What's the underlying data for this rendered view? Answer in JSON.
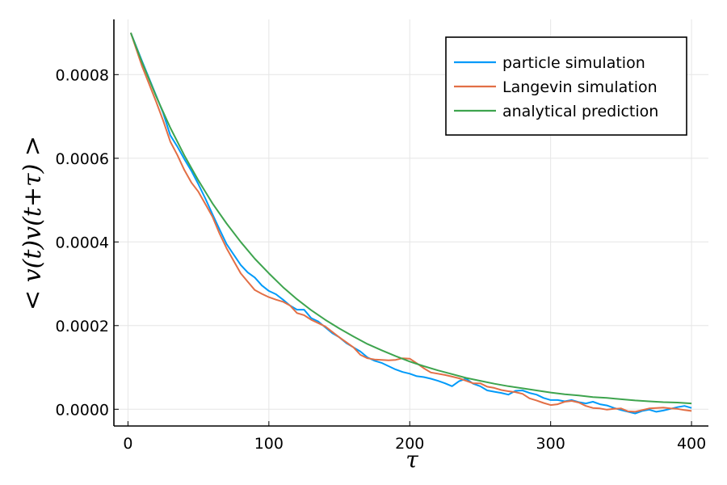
{
  "chart_data": {
    "type": "line",
    "title": "",
    "xlabel": "τ",
    "ylabel": "< v(t)v(t+τ) >",
    "xlim": [
      -10,
      412
    ],
    "ylim": [
      -4e-05,
      0.000932
    ],
    "xticks": [
      0,
      100,
      200,
      300,
      400
    ],
    "xtick_labels": [
      "0",
      "100",
      "200",
      "300",
      "400"
    ],
    "yticks": [
      0,
      0.0002,
      0.0004,
      0.0006,
      0.0008
    ],
    "ytick_labels": [
      "0.0000",
      "0.0002",
      "0.0004",
      "0.0006",
      "0.0008"
    ],
    "grid": true,
    "legend_position": "top-right",
    "series": [
      {
        "name": "particle simulation",
        "color": "#009af9",
        "x": [
          2,
          10,
          20,
          25,
          30,
          35,
          40,
          45,
          50,
          55,
          60,
          65,
          70,
          75,
          80,
          85,
          90,
          95,
          100,
          105,
          110,
          115,
          120,
          125,
          130,
          135,
          140,
          145,
          150,
          155,
          160,
          165,
          170,
          175,
          180,
          185,
          190,
          195,
          200,
          205,
          210,
          215,
          220,
          225,
          230,
          235,
          240,
          245,
          250,
          255,
          260,
          265,
          270,
          275,
          280,
          285,
          290,
          295,
          300,
          305,
          310,
          315,
          320,
          325,
          330,
          335,
          340,
          345,
          350,
          355,
          360,
          365,
          370,
          375,
          380,
          385,
          390,
          395,
          400
        ],
        "values": [
          0.0009,
          0.000832,
          0.00075,
          0.000708,
          0.000655,
          0.000628,
          0.000598,
          0.00057,
          0.000538,
          0.000503,
          0.000466,
          0.00043,
          0.000395,
          0.00037,
          0.000345,
          0.000327,
          0.000315,
          0.000296,
          0.000283,
          0.000275,
          0.000262,
          0.000248,
          0.000238,
          0.000238,
          0.000218,
          0.00021,
          0.000196,
          0.000182,
          0.000172,
          0.000158,
          0.000148,
          0.000138,
          0.000124,
          0.000116,
          0.000111,
          0.000103,
          9.5e-05,
          8.9e-05,
          8.5e-05,
          7.9e-05,
          7.7e-05,
          7.3e-05,
          6.8e-05,
          6.2e-05,
          5.5e-05,
          6.7e-05,
          7.3e-05,
          6.1e-05,
          5.5e-05,
          4.5e-05,
          4.2e-05,
          3.9e-05,
          3.5e-05,
          4.4e-05,
          4.5e-05,
          3.9e-05,
          3.5e-05,
          2.7e-05,
          2.2e-05,
          2.2e-05,
          1.9e-05,
          2.2e-05,
          1.7e-05,
          1.4e-05,
          1.8e-05,
          1.2e-05,
          9e-06,
          3e-06,
          -2e-06,
          -6e-06,
          -1e-05,
          -4e-06,
          -1e-06,
          -6e-06,
          -3e-06,
          1e-06,
          5e-06,
          8e-06,
          3e-06
        ]
      },
      {
        "name": "Langevin simulation",
        "color": "#e26f46",
        "x": [
          2,
          10,
          20,
          25,
          30,
          35,
          40,
          45,
          50,
          55,
          60,
          65,
          70,
          75,
          80,
          85,
          90,
          95,
          100,
          105,
          110,
          115,
          120,
          125,
          130,
          135,
          140,
          145,
          150,
          155,
          160,
          165,
          170,
          175,
          180,
          185,
          190,
          195,
          200,
          205,
          210,
          215,
          220,
          225,
          230,
          235,
          240,
          245,
          250,
          255,
          260,
          265,
          270,
          275,
          280,
          285,
          290,
          295,
          300,
          305,
          310,
          315,
          320,
          325,
          330,
          335,
          340,
          345,
          350,
          355,
          360,
          365,
          370,
          375,
          380,
          385,
          390,
          395,
          400
        ],
        "values": [
          0.0009,
          0.00082,
          0.000735,
          0.00069,
          0.00064,
          0.000608,
          0.000572,
          0.000542,
          0.00052,
          0.00049,
          0.00046,
          0.00042,
          0.000385,
          0.000355,
          0.000325,
          0.000305,
          0.000285,
          0.000276,
          0.000268,
          0.000262,
          0.000257,
          0.000248,
          0.00023,
          0.000225,
          0.000214,
          0.000206,
          0.000198,
          0.000185,
          0.000172,
          0.00016,
          0.000148,
          0.00013,
          0.000122,
          0.000119,
          0.000118,
          0.000117,
          0.000118,
          0.000122,
          0.000121,
          0.00011,
          9.8e-05,
          8.8e-05,
          8.5e-05,
          8.2e-05,
          7.8e-05,
          7.4e-05,
          6.8e-05,
          6.2e-05,
          6.2e-05,
          5.4e-05,
          5.1e-05,
          4.6e-05,
          4.3e-05,
          4.1e-05,
          3.7e-05,
          2.6e-05,
          2.1e-05,
          1.5e-05,
          1e-05,
          1.2e-05,
          1.8e-05,
          2e-05,
          1.6e-05,
          8e-06,
          3e-06,
          2e-06,
          -1e-06,
          1e-06,
          2e-06,
          -5e-06,
          -6e-06,
          -2e-06,
          2e-06,
          3e-06,
          4e-06,
          2e-06,
          1e-06,
          -2e-06,
          -4e-06
        ]
      },
      {
        "name": "analytical prediction",
        "color": "#3ea44e",
        "x": [
          2,
          10,
          20,
          30,
          40,
          50,
          60,
          70,
          80,
          90,
          100,
          110,
          120,
          130,
          140,
          150,
          160,
          170,
          180,
          190,
          200,
          210,
          220,
          230,
          240,
          250,
          260,
          270,
          280,
          290,
          300,
          310,
          320,
          330,
          340,
          350,
          360,
          370,
          380,
          390,
          400
        ],
        "values": [
          0.0009,
          0.000829,
          0.000748,
          0.000673,
          0.000607,
          0.000547,
          0.000492,
          0.000444,
          0.0004,
          0.00036,
          0.000325,
          0.000292,
          0.000263,
          0.000237,
          0.000214,
          0.000193,
          0.000174,
          0.000156,
          0.000141,
          0.000127,
          0.000114,
          0.000103,
          9.3e-05,
          8.4e-05,
          7.5e-05,
          6.8e-05,
          6.1e-05,
          5.5e-05,
          5e-05,
          4.5e-05,
          4e-05,
          3.6e-05,
          3.3e-05,
          2.9e-05,
          2.7e-05,
          2.4e-05,
          2.1e-05,
          1.9e-05,
          1.7e-05,
          1.6e-05,
          1.4e-05
        ]
      }
    ]
  },
  "colors": {
    "axis": "#000000",
    "grid": "#e6e6e6",
    "background": "#ffffff"
  }
}
